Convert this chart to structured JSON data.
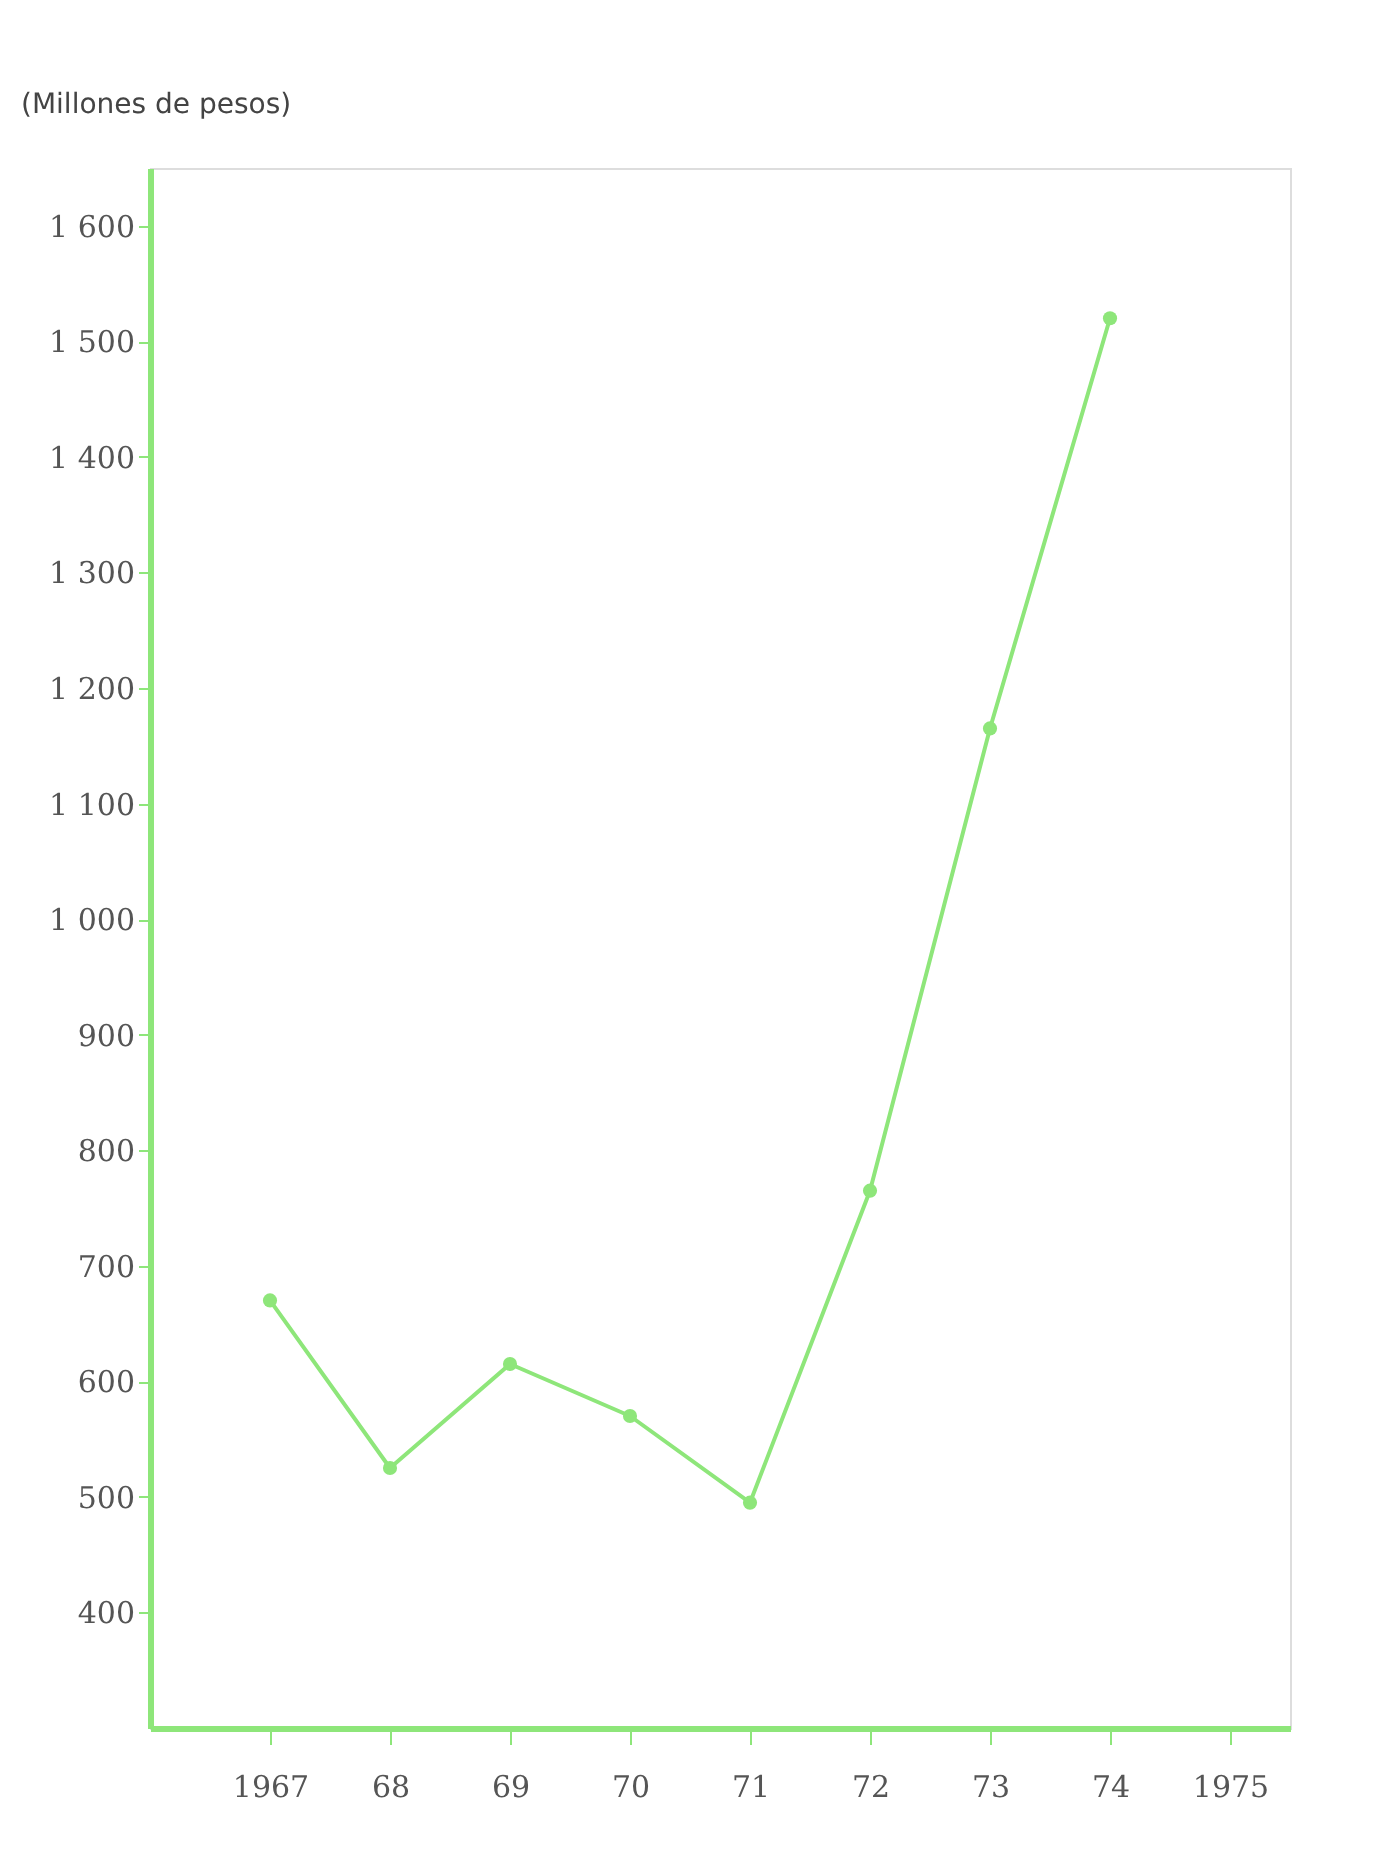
{
  "chart_data": {
    "type": "line",
    "ylabel": "(Millones de pesos)",
    "x": [
      1967,
      1968,
      1969,
      1970,
      1971,
      1972,
      1973,
      1974
    ],
    "series": [
      {
        "color": "#8ee67a",
        "values": [
          670,
          525,
          615,
          570,
          495,
          765,
          1165,
          1520
        ]
      }
    ],
    "xlim": [
      1966,
      1975.5
    ],
    "xticks": [
      {
        "value": 1967,
        "label": "1967"
      },
      {
        "value": 1968,
        "label": "68"
      },
      {
        "value": 1969,
        "label": "69"
      },
      {
        "value": 1970,
        "label": "70"
      },
      {
        "value": 1971,
        "label": "71"
      },
      {
        "value": 1972,
        "label": "72"
      },
      {
        "value": 1973,
        "label": "73"
      },
      {
        "value": 1974,
        "label": "74"
      },
      {
        "value": 1975,
        "label": "1975"
      }
    ],
    "ylim": [
      300,
      1650
    ],
    "yticks": [
      400,
      500,
      600,
      700,
      800,
      900,
      {
        "value": 1000,
        "label": "1 000"
      },
      {
        "value": 1100,
        "label": "1 100"
      },
      {
        "value": 1200,
        "label": "1 200"
      },
      {
        "value": 1300,
        "label": "1 300"
      },
      {
        "value": 1400,
        "label": "1 400"
      },
      {
        "value": 1500,
        "label": "1 500"
      },
      {
        "value": 1600,
        "label": "1 600"
      }
    ],
    "marker": "circle",
    "grid": false,
    "line_style": "solid"
  }
}
